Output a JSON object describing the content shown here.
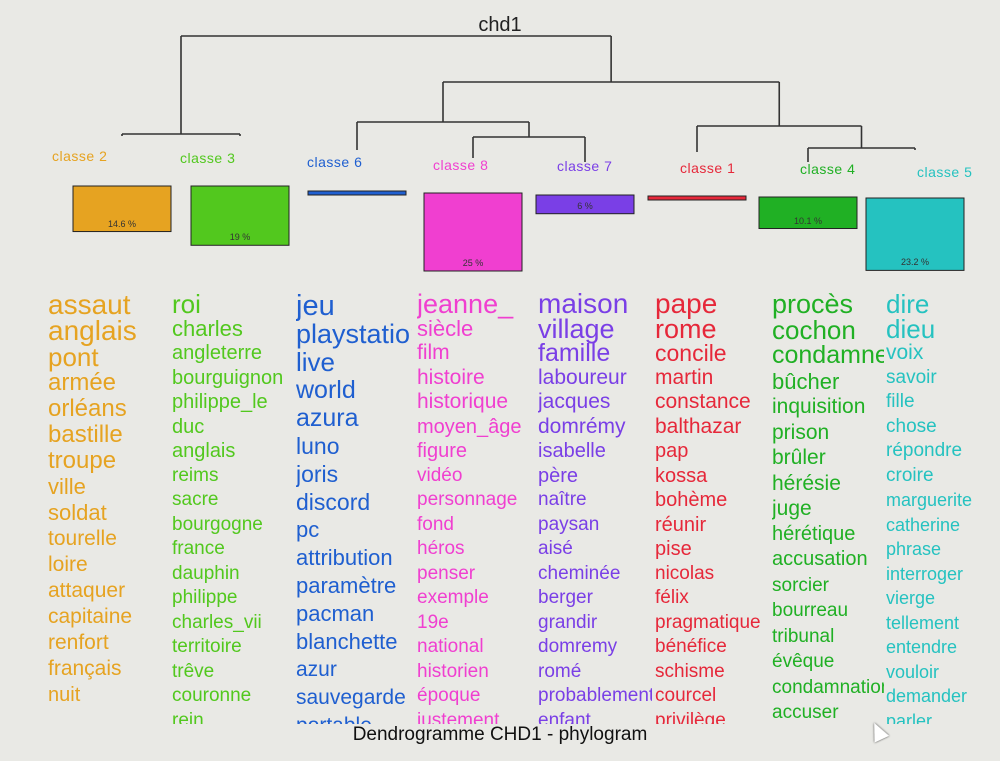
{
  "chart_data": {
    "type": "dendrogram",
    "title": "chd1",
    "caption": "Dendrogramme CHD1 - phylogram",
    "classes": [
      {
        "label": "classe 2",
        "color": "#e6a321",
        "pct_label": "14.6 %",
        "pct": 14.6,
        "words": [
          "assaut",
          "anglais",
          "pont",
          "armée",
          "orléans",
          "bastille",
          "troupe",
          "ville",
          "soldat",
          "tourelle",
          "loire",
          "attaquer",
          "capitaine",
          "renfort",
          "français",
          "nuit"
        ]
      },
      {
        "label": "classe 3",
        "color": "#52c81e",
        "pct_label": "19 %",
        "pct": 19,
        "words": [
          "roi",
          "charles",
          "angleterre",
          "bourguignon",
          "philippe_le",
          "duc",
          "anglais",
          "reims",
          "sacre",
          "bourgogne",
          "france",
          "dauphin",
          "philippe",
          "charles_vii",
          "territoire",
          "trêve",
          "couronne",
          "rein"
        ]
      },
      {
        "label": "classe 6",
        "color": "#1f5fd0",
        "pct_label": "",
        "pct": 0.5,
        "words": [
          "jeu",
          "playstation",
          "live",
          "world",
          "azura",
          "luno",
          "joris",
          "discord",
          "pc",
          "attribution",
          "paramètre",
          "pacman",
          "blanchette",
          "azur",
          "sauvegarde",
          "portable"
        ]
      },
      {
        "label": "classe 8",
        "color": "#f03fd0",
        "pct_label": "25 %",
        "pct": 25,
        "words": [
          "jeanne_",
          "siècle",
          "film",
          "histoire",
          "historique",
          "moyen_âge",
          "figure",
          "vidéo",
          "personnage",
          "fond",
          "héros",
          "penser",
          "exemple",
          "19e",
          "national",
          "historien",
          "époque",
          "justement"
        ]
      },
      {
        "label": "classe 7",
        "color": "#7a3fe6",
        "pct_label": "6 %",
        "pct": 6,
        "words": [
          "maison",
          "village",
          "famille",
          "laboureur",
          "jacques",
          "domrémy",
          "isabelle",
          "père",
          "naître",
          "paysan",
          "aisé",
          "cheminée",
          "berger",
          "grandir",
          "domremy",
          "romé",
          "probablement",
          "enfant"
        ]
      },
      {
        "label": "classe 1",
        "color": "#e6283a",
        "pct_label": "",
        "pct": 0.5,
        "words": [
          "pape",
          "rome",
          "concile",
          "martin",
          "constance",
          "balthazar",
          "pap",
          "kossa",
          "bohème",
          "réunir",
          "pise",
          "nicolas",
          "félix",
          "pragmatique",
          "bénéfice",
          "schisme",
          "courcel",
          "privilège"
        ]
      },
      {
        "label": "classe 4",
        "color": "#20b024",
        "pct_label": "10.1 %",
        "pct": 10.1,
        "words": [
          "procès",
          "cochon",
          "condamner",
          "bûcher",
          "inquisition",
          "prison",
          "brûler",
          "hérésie",
          "juge",
          "hérétique",
          "accusation",
          "sorcier",
          "bourreau",
          "tribunal",
          "évêque",
          "condamnation",
          "accuser"
        ]
      },
      {
        "label": "classe 5",
        "color": "#25c2c0",
        "pct_label": "23.2 %",
        "pct": 23.2,
        "words": [
          "dire",
          "dieu",
          "voix",
          "savoir",
          "fille",
          "chose",
          "répondre",
          "croire",
          "marguerite",
          "catherine",
          "phrase",
          "interroger",
          "vierge",
          "tellement",
          "entendre",
          "vouloir",
          "demander",
          "parler"
        ]
      }
    ]
  }
}
